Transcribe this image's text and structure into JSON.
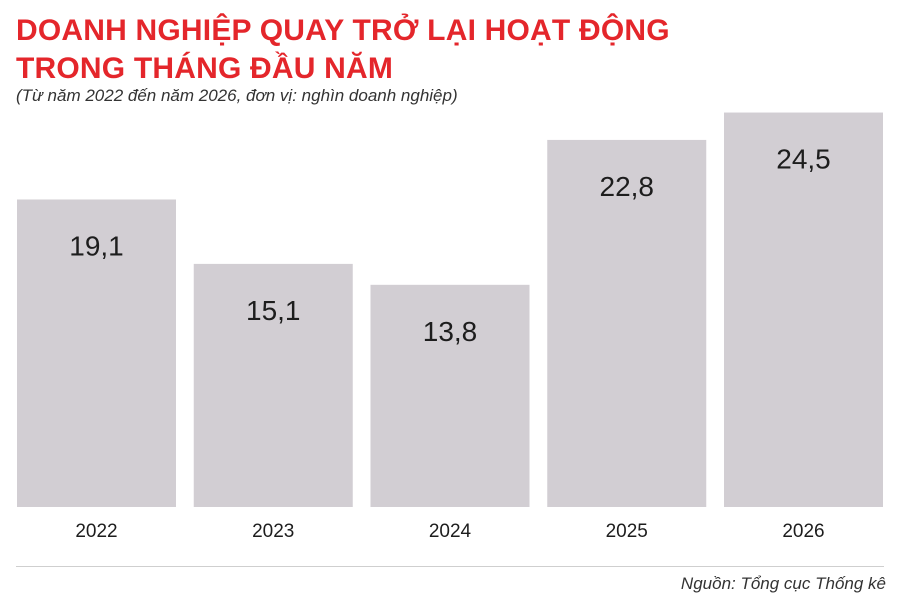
{
  "header": {
    "title_line1": "DOANH NGHIỆP QUAY TRỞ LẠI HOẠT ĐỘNG",
    "title_line2": "TRONG THÁNG ĐẦU NĂM",
    "subtitle": "(Từ năm 2022 đến năm 2026, đơn vị: nghìn doanh nghiệp)"
  },
  "footer": {
    "source": "Nguồn: Tổng cục Thống kê"
  },
  "colors": {
    "title": "#e4262b",
    "bar": "#d2ced3"
  },
  "chart_data": {
    "type": "bar",
    "categories": [
      "2022",
      "2023",
      "2024",
      "2025",
      "2026"
    ],
    "values": [
      19.1,
      15.1,
      13.8,
      22.8,
      24.5
    ],
    "value_labels": [
      "19,1",
      "15,1",
      "13,8",
      "22,8",
      "24,5"
    ],
    "title": "DOANH NGHIỆP QUAY TRỞ LẠI HOẠT ĐỘNG TRONG THÁNG ĐẦU NĂM",
    "subtitle": "(Từ năm 2022 đến năm 2026, đơn vị: nghìn doanh nghiệp)",
    "xlabel": "",
    "ylabel": "",
    "grid": false,
    "legend": "none"
  }
}
